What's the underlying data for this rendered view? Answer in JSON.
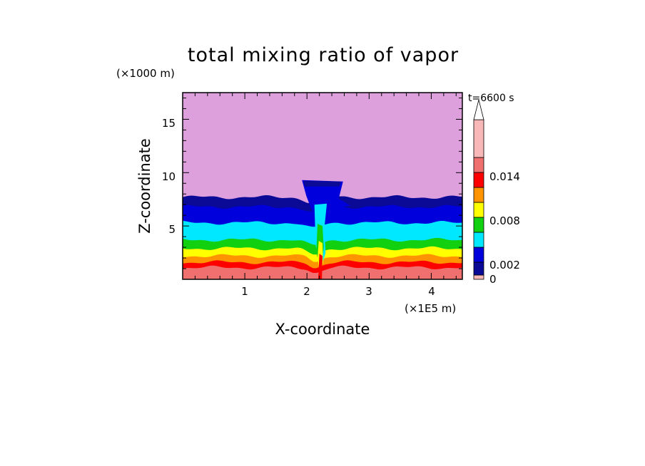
{
  "chart_data": {
    "type": "contour",
    "title": "total mixing ratio of vapor",
    "xlabel": "X-coordinate",
    "ylabel": "Z-coordinate",
    "x_unit": "(×1E5 m)",
    "y_unit": "(×1000 m)",
    "time_label": "t=6600 s",
    "xlim": [
      0,
      4.5
    ],
    "ylim": [
      0,
      17.5
    ],
    "x_ticks": [
      "1",
      "2",
      "3",
      "4"
    ],
    "y_ticks": [
      "5",
      "10",
      "15"
    ],
    "colorbar": {
      "tick_labels": [
        "0",
        "0.002",
        "0.008",
        "0.014"
      ],
      "tick_values": [
        0,
        0.002,
        0.008,
        0.014
      ],
      "levels": [
        0,
        0.001,
        0.002,
        0.004,
        0.006,
        0.008,
        0.01,
        0.012,
        0.014,
        0.016
      ],
      "colors": [
        "#0a0a96",
        "#0000dc",
        "#00e8ff",
        "#10d010",
        "#ffff00",
        "#ff9400",
        "#ff0000",
        "#f07070",
        "#f8b8b8"
      ],
      "extend": "max",
      "top_color": "#dda0dd"
    },
    "bands": [
      {
        "top_z": 7.7,
        "value": 0.0005,
        "color": "#0a0a96"
      },
      {
        "top_z": 6.8,
        "value": 0.0015,
        "color": "#0000dc"
      },
      {
        "top_z": 5.3,
        "value": 0.003,
        "color": "#00e8ff"
      },
      {
        "top_z": 3.7,
        "value": 0.005,
        "color": "#10d010"
      },
      {
        "top_z": 2.9,
        "value": 0.007,
        "color": "#ffff00"
      },
      {
        "top_z": 2.2,
        "value": 0.009,
        "color": "#ff9400"
      },
      {
        "top_z": 1.6,
        "value": 0.011,
        "color": "#ff0000"
      },
      {
        "top_z": 1.1,
        "value": 0.013,
        "color": "#f07070"
      }
    ],
    "convective_cell": {
      "x_center": 2.1,
      "cloud_top_z": 9.3,
      "anvil_x": [
        1.92,
        2.58
      ]
    }
  }
}
